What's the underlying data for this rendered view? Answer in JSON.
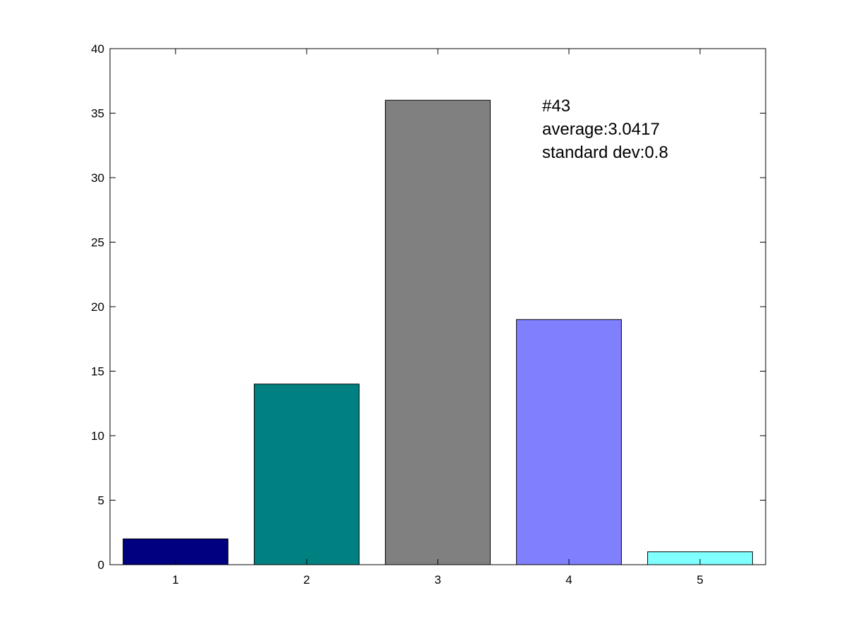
{
  "chart_data": {
    "type": "bar",
    "categories": [
      "1",
      "2",
      "3",
      "4",
      "5"
    ],
    "values": [
      2,
      14,
      36,
      19,
      1
    ],
    "bar_colors": [
      "#000080",
      "#008080",
      "#808080",
      "#8080ff",
      "#80ffff"
    ],
    "xlim": [
      0.5,
      5.5
    ],
    "ylim": [
      0,
      40
    ],
    "yticks": [
      0,
      5,
      10,
      15,
      20,
      25,
      30,
      35,
      40
    ],
    "xticks": [
      1,
      2,
      3,
      4,
      5
    ],
    "grid": false,
    "annotations": [
      "#43",
      "average:3.0417",
      "standard dev:0.8"
    ]
  }
}
